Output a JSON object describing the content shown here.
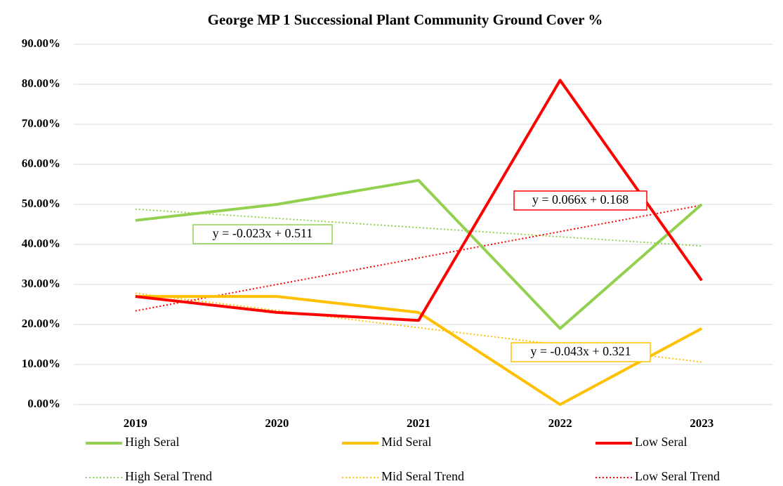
{
  "chart_data": {
    "type": "line",
    "title": "George MP 1 Successional Plant Community Ground Cover %",
    "categories": [
      "2019",
      "2020",
      "2021",
      "2022",
      "2023"
    ],
    "series": [
      {
        "name": "High Seral",
        "color": "#92d050",
        "line_style": "solid",
        "values": [
          46,
          50,
          56,
          19,
          50
        ]
      },
      {
        "name": "Mid Seral",
        "color": "#ffc000",
        "line_style": "solid",
        "values": [
          27,
          27,
          23,
          0,
          19
        ]
      },
      {
        "name": "Low Seral",
        "color": "#ff0000",
        "line_style": "solid",
        "values": [
          27,
          23,
          21,
          81,
          31
        ]
      },
      {
        "name": "High Seral Trend",
        "color": "#92d050",
        "line_style": "dotted",
        "values": [
          48.8,
          46.5,
          44.2,
          41.9,
          39.6
        ]
      },
      {
        "name": "Mid Seral Trend",
        "color": "#ffc000",
        "line_style": "dotted",
        "values": [
          27.8,
          23.5,
          19.2,
          14.9,
          10.6
        ]
      },
      {
        "name": "Low Seral Trend",
        "color": "#ff0000",
        "line_style": "dotted",
        "values": [
          23.4,
          30.0,
          36.6,
          43.2,
          49.8
        ]
      }
    ],
    "annotations": [
      "y = -0.023x + 0.511",
      "y = 0.066x + 0.168",
      "y = -0.043x + 0.321"
    ],
    "ylim": [
      0,
      90
    ],
    "yticks": [
      {
        "value": 0,
        "label": "0.00%"
      },
      {
        "value": 10,
        "label": "10.00%"
      },
      {
        "value": 20,
        "label": "20.00%"
      },
      {
        "value": 30,
        "label": "30.00%"
      },
      {
        "value": 40,
        "label": "40.00%"
      },
      {
        "value": 50,
        "label": "50.00%"
      },
      {
        "value": 60,
        "label": "60.00%"
      },
      {
        "value": 70,
        "label": "70.00%"
      },
      {
        "value": 80,
        "label": "80.00%"
      },
      {
        "value": 90,
        "label": "90.00%"
      }
    ],
    "grid": true
  }
}
